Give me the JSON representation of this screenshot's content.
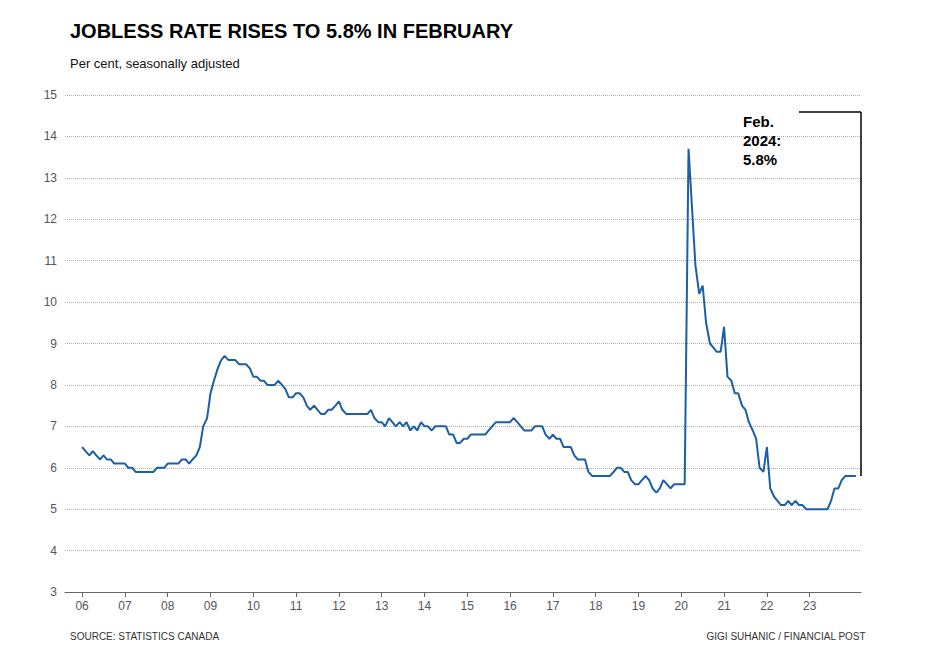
{
  "chart_data": {
    "type": "line",
    "title": "JOBLESS RATE RISES TO 5.8% IN FEBRUARY",
    "subtitle": "Per cent, seasonally adjusted",
    "annotations": [
      "Feb.\n2024:\n5.8%"
    ],
    "source_left": "SOURCE: STATISTICS CANADA",
    "source_right": "GIGI SUHANIC / FINANCIAL POST",
    "color": "#1a5fa8",
    "grid": true,
    "xlim": [
      2005.6,
      2024.2
    ],
    "xticks": [
      {
        "value": 2006,
        "label": "06"
      },
      {
        "value": 2007,
        "label": "07"
      },
      {
        "value": 2008,
        "label": "08"
      },
      {
        "value": 2009,
        "label": "09"
      },
      {
        "value": 2010,
        "label": "10"
      },
      {
        "value": 2011,
        "label": "11"
      },
      {
        "value": 2012,
        "label": "12"
      },
      {
        "value": 2013,
        "label": "13"
      },
      {
        "value": 2014,
        "label": "14"
      },
      {
        "value": 2015,
        "label": "15"
      },
      {
        "value": 2016,
        "label": "16"
      },
      {
        "value": 2017,
        "label": "17"
      },
      {
        "value": 2018,
        "label": "18"
      },
      {
        "value": 2019,
        "label": "19"
      },
      {
        "value": 2020,
        "label": "20"
      },
      {
        "value": 2021,
        "label": "21"
      },
      {
        "value": 2022,
        "label": "22"
      },
      {
        "value": 2023,
        "label": "23"
      }
    ],
    "ylim": [
      3,
      15
    ],
    "yticks": [
      3,
      4,
      5,
      6,
      7,
      8,
      9,
      10,
      11,
      12,
      13,
      14,
      15
    ],
    "x": [
      2006,
      2006.08,
      2006.17,
      2006.25,
      2006.33,
      2006.42,
      2006.5,
      2006.58,
      2006.67,
      2006.75,
      2006.83,
      2006.92,
      2007,
      2007.08,
      2007.17,
      2007.25,
      2007.33,
      2007.42,
      2007.5,
      2007.58,
      2007.67,
      2007.75,
      2007.83,
      2007.92,
      2008,
      2008.08,
      2008.17,
      2008.25,
      2008.33,
      2008.42,
      2008.5,
      2008.58,
      2008.67,
      2008.75,
      2008.83,
      2008.92,
      2009,
      2009.08,
      2009.17,
      2009.25,
      2009.33,
      2009.42,
      2009.5,
      2009.58,
      2009.67,
      2009.75,
      2009.83,
      2009.92,
      2010,
      2010.08,
      2010.17,
      2010.25,
      2010.33,
      2010.42,
      2010.5,
      2010.58,
      2010.67,
      2010.75,
      2010.83,
      2010.92,
      2011,
      2011.08,
      2011.17,
      2011.25,
      2011.33,
      2011.42,
      2011.5,
      2011.58,
      2011.67,
      2011.75,
      2011.83,
      2011.92,
      2012,
      2012.08,
      2012.17,
      2012.25,
      2012.33,
      2012.42,
      2012.5,
      2012.58,
      2012.67,
      2012.75,
      2012.83,
      2012.92,
      2013,
      2013.08,
      2013.17,
      2013.25,
      2013.33,
      2013.42,
      2013.5,
      2013.58,
      2013.67,
      2013.75,
      2013.83,
      2013.92,
      2014,
      2014.08,
      2014.17,
      2014.25,
      2014.33,
      2014.42,
      2014.5,
      2014.58,
      2014.67,
      2014.75,
      2014.83,
      2014.92,
      2015,
      2015.08,
      2015.17,
      2015.25,
      2015.33,
      2015.42,
      2015.5,
      2015.58,
      2015.67,
      2015.75,
      2015.83,
      2015.92,
      2016,
      2016.08,
      2016.17,
      2016.25,
      2016.33,
      2016.42,
      2016.5,
      2016.58,
      2016.67,
      2016.75,
      2016.83,
      2016.92,
      2017,
      2017.08,
      2017.17,
      2017.25,
      2017.33,
      2017.42,
      2017.5,
      2017.58,
      2017.67,
      2017.75,
      2017.83,
      2017.92,
      2018,
      2018.08,
      2018.17,
      2018.25,
      2018.33,
      2018.42,
      2018.5,
      2018.58,
      2018.67,
      2018.75,
      2018.83,
      2018.92,
      2019,
      2019.08,
      2019.17,
      2019.25,
      2019.33,
      2019.42,
      2019.5,
      2019.58,
      2019.67,
      2019.75,
      2019.83,
      2019.92,
      2020,
      2020.08,
      2020.17,
      2020.25,
      2020.33,
      2020.42,
      2020.5,
      2020.58,
      2020.67,
      2020.75,
      2020.83,
      2020.92,
      2021,
      2021.08,
      2021.17,
      2021.25,
      2021.33,
      2021.42,
      2021.5,
      2021.58,
      2021.67,
      2021.75,
      2021.83,
      2021.92,
      2022,
      2022.08,
      2022.17,
      2022.25,
      2022.33,
      2022.42,
      2022.5,
      2022.58,
      2022.67,
      2022.75,
      2022.83,
      2022.92,
      2023,
      2023.08,
      2023.17,
      2023.25,
      2023.33,
      2023.42,
      2023.5,
      2023.58,
      2023.67,
      2023.75,
      2023.83,
      2023.92,
      2024.08
    ],
    "values": [
      6.5,
      6.4,
      6.3,
      6.4,
      6.3,
      6.2,
      6.3,
      6.2,
      6.2,
      6.1,
      6.1,
      6.1,
      6.1,
      6.0,
      6.0,
      5.9,
      5.9,
      5.9,
      5.9,
      5.9,
      5.9,
      6.0,
      6.0,
      6.0,
      6.1,
      6.1,
      6.1,
      6.1,
      6.2,
      6.2,
      6.1,
      6.2,
      6.3,
      6.5,
      7.0,
      7.2,
      7.8,
      8.1,
      8.4,
      8.6,
      8.7,
      8.6,
      8.6,
      8.6,
      8.5,
      8.5,
      8.5,
      8.4,
      8.2,
      8.2,
      8.1,
      8.1,
      8.0,
      8.0,
      8.0,
      8.1,
      8.0,
      7.9,
      7.7,
      7.7,
      7.8,
      7.8,
      7.7,
      7.5,
      7.4,
      7.5,
      7.4,
      7.3,
      7.3,
      7.4,
      7.4,
      7.5,
      7.6,
      7.4,
      7.3,
      7.3,
      7.3,
      7.3,
      7.3,
      7.3,
      7.3,
      7.4,
      7.2,
      7.1,
      7.1,
      7.0,
      7.2,
      7.1,
      7.0,
      7.1,
      7.0,
      7.1,
      6.9,
      7.0,
      6.9,
      7.1,
      7.0,
      7.0,
      6.9,
      7.0,
      7.0,
      7.0,
      7.0,
      6.8,
      6.8,
      6.6,
      6.6,
      6.7,
      6.7,
      6.8,
      6.8,
      6.8,
      6.8,
      6.8,
      6.9,
      7.0,
      7.1,
      7.1,
      7.1,
      7.1,
      7.1,
      7.2,
      7.1,
      7.0,
      6.9,
      6.9,
      6.9,
      7.0,
      7.0,
      7.0,
      6.8,
      6.7,
      6.8,
      6.7,
      6.7,
      6.5,
      6.5,
      6.5,
      6.3,
      6.2,
      6.2,
      6.2,
      5.9,
      5.8,
      5.8,
      5.8,
      5.8,
      5.8,
      5.8,
      5.9,
      6.0,
      6.0,
      5.9,
      5.9,
      5.7,
      5.6,
      5.6,
      5.7,
      5.8,
      5.7,
      5.5,
      5.4,
      5.5,
      5.7,
      5.6,
      5.5,
      5.6,
      5.6,
      5.6,
      5.6,
      13.7,
      12.3,
      10.9,
      10.2,
      10.4,
      9.5,
      9.0,
      8.9,
      8.8,
      8.8,
      9.4,
      8.2,
      8.1,
      7.8,
      7.8,
      7.5,
      7.4,
      7.1,
      6.9,
      6.7,
      6.0,
      5.9,
      6.5,
      5.5,
      5.3,
      5.2,
      5.1,
      5.1,
      5.2,
      5.1,
      5.2,
      5.1,
      5.1,
      5.0,
      5.0,
      5.0,
      5.0,
      5.0,
      5.0,
      5.0,
      5.2,
      5.5,
      5.5,
      5.7,
      5.8,
      5.8,
      5.8
    ]
  }
}
